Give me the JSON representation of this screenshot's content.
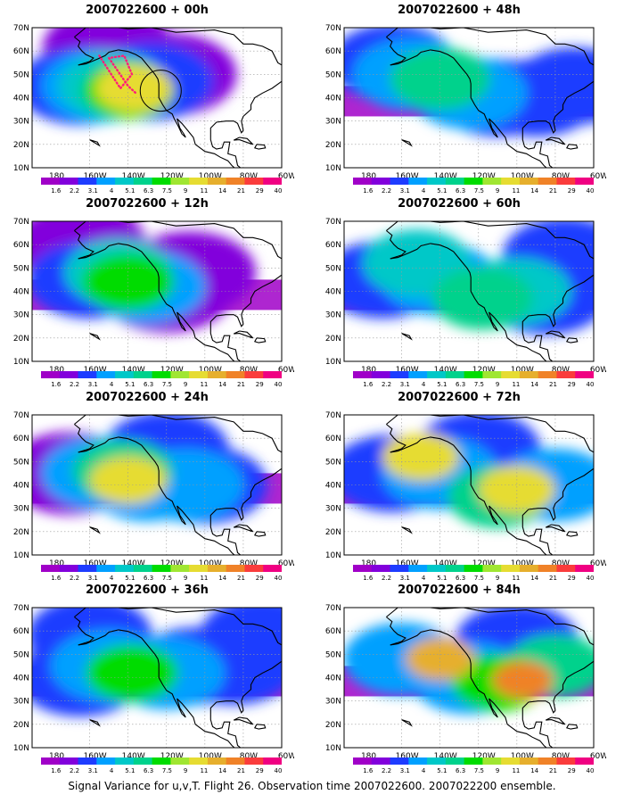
{
  "panels": [
    {
      "title": "2007022600 + 00h",
      "blobs": [
        {
          "x": -148,
          "y": 45,
          "level": 4
        },
        {
          "x": -140,
          "y": 43,
          "level": 6
        },
        {
          "x": -137,
          "y": 44,
          "level": 8
        },
        {
          "x": -165,
          "y": 45,
          "level": 2
        },
        {
          "x": -155,
          "y": 45,
          "level": 3
        },
        {
          "x": -128,
          "y": 47,
          "level": 2
        },
        {
          "x": -150,
          "y": 61,
          "level": 1
        },
        {
          "x": -118,
          "y": 50,
          "level": 1
        }
      ],
      "marker": {
        "circle": {
          "lon": -123,
          "lat": 43
        },
        "flight_track": [
          [
            -155,
            58
          ],
          [
            -148,
            49
          ],
          [
            -144,
            44
          ],
          [
            -138,
            50
          ],
          [
            -142,
            58
          ],
          [
            -150,
            57
          ],
          [
            -140,
            45
          ],
          [
            -136,
            42
          ]
        ]
      }
    },
    {
      "title": "2007022600 + 12h",
      "blobs": [
        {
          "x": -140,
          "y": 44,
          "level": 6
        },
        {
          "x": -145,
          "y": 48,
          "level": 4
        },
        {
          "x": -160,
          "y": 45,
          "level": 2
        },
        {
          "x": -130,
          "y": 42,
          "level": 3
        },
        {
          "x": -120,
          "y": 40,
          "level": 1
        },
        {
          "x": -108,
          "y": 48,
          "level": 1
        },
        {
          "x": -165,
          "y": 60,
          "level": 1
        }
      ]
    },
    {
      "title": "2007022600 + 24h",
      "blobs": [
        {
          "x": -140,
          "y": 42,
          "level": 8
        },
        {
          "x": -143,
          "y": 46,
          "level": 5
        },
        {
          "x": -155,
          "y": 45,
          "level": 3
        },
        {
          "x": -130,
          "y": 40,
          "level": 3
        },
        {
          "x": -110,
          "y": 40,
          "level": 3
        },
        {
          "x": -100,
          "y": 40,
          "level": 2
        },
        {
          "x": -170,
          "y": 45,
          "level": 1
        },
        {
          "x": -120,
          "y": 55,
          "level": 2
        }
      ]
    },
    {
      "title": "2007022600 + 36h",
      "blobs": [
        {
          "x": -138,
          "y": 42,
          "level": 6
        },
        {
          "x": -150,
          "y": 45,
          "level": 3
        },
        {
          "x": -120,
          "y": 42,
          "level": 3
        },
        {
          "x": -105,
          "y": 45,
          "level": 2
        },
        {
          "x": -85,
          "y": 45,
          "level": 2
        },
        {
          "x": -165,
          "y": 40,
          "level": 2
        },
        {
          "x": -160,
          "y": 58,
          "level": 2
        },
        {
          "x": -70,
          "y": 58,
          "level": 2
        }
      ]
    },
    {
      "title": "2007022600 + 48h",
      "blobs": [
        {
          "x": -140,
          "y": 48,
          "level": 5
        },
        {
          "x": -155,
          "y": 50,
          "level": 3
        },
        {
          "x": -125,
          "y": 42,
          "level": 3
        },
        {
          "x": -110,
          "y": 40,
          "level": 2
        },
        {
          "x": -90,
          "y": 40,
          "level": 2
        },
        {
          "x": -165,
          "y": 55,
          "level": 2
        },
        {
          "x": -70,
          "y": 45,
          "level": 2
        }
      ]
    },
    {
      "title": "2007022600 + 60h",
      "blobs": [
        {
          "x": -152,
          "y": 52,
          "level": 4
        },
        {
          "x": -118,
          "y": 37,
          "level": 5
        },
        {
          "x": -100,
          "y": 40,
          "level": 4
        },
        {
          "x": -140,
          "y": 45,
          "level": 3
        },
        {
          "x": -85,
          "y": 38,
          "level": 2
        },
        {
          "x": -170,
          "y": 45,
          "level": 2
        },
        {
          "x": -75,
          "y": 55,
          "level": 2
        }
      ]
    },
    {
      "title": "2007022600 + 72h",
      "blobs": [
        {
          "x": -150,
          "y": 52,
          "level": 8
        },
        {
          "x": -100,
          "y": 38,
          "level": 8
        },
        {
          "x": -110,
          "y": 35,
          "level": 5
        },
        {
          "x": -140,
          "y": 45,
          "level": 3
        },
        {
          "x": -165,
          "y": 45,
          "level": 2
        },
        {
          "x": -80,
          "y": 40,
          "level": 3
        },
        {
          "x": -120,
          "y": 55,
          "level": 2
        }
      ]
    },
    {
      "title": "2007022600 + 84h",
      "blobs": [
        {
          "x": -140,
          "y": 48,
          "level": 9
        },
        {
          "x": -97,
          "y": 39,
          "level": 10
        },
        {
          "x": -110,
          "y": 38,
          "level": 6
        },
        {
          "x": -160,
          "y": 48,
          "level": 3
        },
        {
          "x": -80,
          "y": 45,
          "level": 5
        },
        {
          "x": -125,
          "y": 40,
          "level": 3
        },
        {
          "x": -100,
          "y": 55,
          "level": 2
        }
      ]
    }
  ],
  "colorbar": {
    "colors": [
      "#a000c8",
      "#8200dc",
      "#1e3cff",
      "#00a0ff",
      "#00c8c8",
      "#00d28c",
      "#00dc00",
      "#a0e632",
      "#e6dc32",
      "#e6af2d",
      "#f08228",
      "#fa3c3c",
      "#f00082"
    ],
    "labels": [
      "1.6",
      "2.2",
      "3.1",
      "4",
      "5.1",
      "6.3",
      "7.5",
      "9",
      "11",
      "14",
      "21",
      "29",
      "40"
    ]
  },
  "axes": {
    "xticks": [
      {
        "lon": -180,
        "label": "180"
      },
      {
        "lon": -160,
        "label": "160W"
      },
      {
        "lon": -140,
        "label": "140W"
      },
      {
        "lon": -120,
        "label": "120W"
      },
      {
        "lon": -100,
        "label": "100W"
      },
      {
        "lon": -80,
        "label": "80W"
      },
      {
        "lon": -60,
        "label": "60W"
      }
    ],
    "yticks": [
      {
        "lat": 10,
        "label": "10N"
      },
      {
        "lat": 20,
        "label": "20N"
      },
      {
        "lat": 30,
        "label": "30N"
      },
      {
        "lat": 40,
        "label": "40N"
      },
      {
        "lat": 50,
        "label": "50N"
      },
      {
        "lat": 60,
        "label": "60N"
      },
      {
        "lat": 70,
        "label": "70N"
      }
    ]
  },
  "caption": "Signal Variance for u,v,T. Flight 26. Observation time 2007022600. 2007022200 ensemble."
}
